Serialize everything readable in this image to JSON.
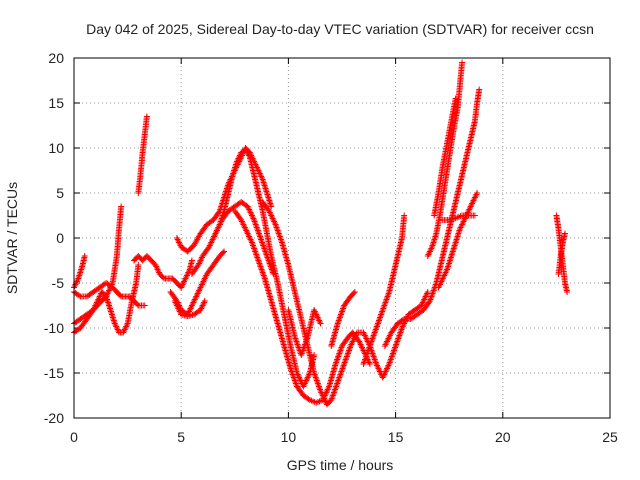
{
  "chart_data": {
    "type": "scatter",
    "title": "Day 042 of 2025, Sidereal Day-to-day VTEC variation (SDTVAR) for receiver ccsn",
    "xlabel": "GPS time / hours",
    "ylabel": "SDTVAR / TECUs",
    "xlim": [
      0,
      25
    ],
    "ylim": [
      -20,
      20
    ],
    "xticks": [
      "0",
      "5",
      "10",
      "15",
      "20",
      "25"
    ],
    "yticks": [
      "-20",
      "-15",
      "-10",
      "-5",
      "0",
      "5",
      "10",
      "15",
      "20"
    ],
    "grid": true,
    "marker": "+",
    "color": "#ff0000",
    "series": [
      {
        "points": [
          [
            0.0,
            -5.5
          ],
          [
            0.2,
            -4.5
          ],
          [
            0.4,
            -3.0
          ],
          [
            0.5,
            -2.0
          ]
        ]
      },
      {
        "points": [
          [
            0.0,
            -9.5
          ],
          [
            0.3,
            -9.0
          ],
          [
            0.6,
            -8.5
          ],
          [
            0.9,
            -8.0
          ],
          [
            1.2,
            -7.2
          ],
          [
            1.5,
            -6.5
          ],
          [
            1.8,
            -5.0
          ],
          [
            2.0,
            -2.0
          ],
          [
            2.1,
            1.0
          ],
          [
            2.2,
            3.5
          ]
        ]
      },
      {
        "points": [
          [
            0.0,
            -10.5
          ],
          [
            0.3,
            -10.0
          ],
          [
            0.6,
            -9.0
          ],
          [
            0.9,
            -8.0
          ],
          [
            1.1,
            -7.0
          ],
          [
            1.3,
            -6.0
          ],
          [
            1.5,
            -6.5
          ],
          [
            1.7,
            -8.0
          ],
          [
            1.9,
            -9.5
          ],
          [
            2.1,
            -10.5
          ],
          [
            2.3,
            -10.5
          ],
          [
            2.5,
            -9.5
          ],
          [
            2.7,
            -7.0
          ],
          [
            2.9,
            -5.0
          ],
          [
            3.0,
            -3.0
          ]
        ]
      },
      {
        "points": [
          [
            0.0,
            -6.0
          ],
          [
            0.3,
            -6.5
          ],
          [
            0.6,
            -6.5
          ],
          [
            0.9,
            -6.0
          ],
          [
            1.2,
            -5.5
          ],
          [
            1.5,
            -5.0
          ],
          [
            1.8,
            -5.5
          ],
          [
            2.0,
            -6.0
          ],
          [
            2.2,
            -6.5
          ],
          [
            2.4,
            -6.5
          ],
          [
            2.6,
            -6.5
          ],
          [
            2.8,
            -7.0
          ],
          [
            3.0,
            -7.5
          ],
          [
            3.3,
            -7.5
          ]
        ]
      },
      {
        "points": [
          [
            2.8,
            -2.5
          ],
          [
            3.0,
            -2.0
          ],
          [
            3.2,
            -2.5
          ],
          [
            3.4,
            -2.0
          ],
          [
            3.6,
            -2.5
          ],
          [
            3.8,
            -3.0
          ],
          [
            4.0,
            -4.0
          ],
          [
            4.2,
            -4.5
          ],
          [
            4.4,
            -4.5
          ],
          [
            4.6,
            -4.5
          ],
          [
            4.8,
            -5.0
          ],
          [
            5.0,
            -5.5
          ],
          [
            5.2,
            -4.5
          ],
          [
            5.4,
            -3.5
          ],
          [
            5.5,
            -2.5
          ]
        ]
      },
      {
        "points": [
          [
            3.0,
            5.0
          ],
          [
            3.1,
            7.0
          ],
          [
            3.2,
            9.5
          ],
          [
            3.3,
            11.5
          ],
          [
            3.4,
            13.5
          ]
        ]
      },
      {
        "points": [
          [
            4.5,
            -6.0
          ],
          [
            4.8,
            -7.0
          ],
          [
            5.0,
            -8.0
          ],
          [
            5.3,
            -8.5
          ],
          [
            5.6,
            -7.0
          ],
          [
            5.9,
            -5.5
          ],
          [
            6.2,
            -4.0
          ],
          [
            6.5,
            -3.0
          ],
          [
            6.8,
            -2.0
          ],
          [
            7.0,
            -1.5
          ]
        ]
      },
      {
        "points": [
          [
            4.7,
            -7.0
          ],
          [
            5.0,
            -8.5
          ],
          [
            5.3,
            -8.7
          ],
          [
            5.6,
            -8.5
          ],
          [
            5.9,
            -8.0
          ],
          [
            6.1,
            -7.0
          ]
        ]
      },
      {
        "points": [
          [
            4.8,
            0.0
          ],
          [
            5.0,
            -1.0
          ],
          [
            5.3,
            -1.5
          ],
          [
            5.6,
            -0.8
          ],
          [
            5.9,
            0.5
          ],
          [
            6.2,
            1.5
          ],
          [
            6.5,
            2.0
          ],
          [
            6.8,
            3.0
          ],
          [
            7.0,
            4.5
          ],
          [
            7.2,
            6.0
          ],
          [
            7.5,
            7.5
          ],
          [
            7.8,
            9.0
          ],
          [
            8.0,
            10.0
          ],
          [
            8.2,
            9.5
          ],
          [
            8.5,
            8.0
          ],
          [
            8.8,
            6.5
          ],
          [
            9.0,
            5.0
          ],
          [
            9.2,
            3.5
          ]
        ]
      },
      {
        "points": [
          [
            5.5,
            -4.0
          ],
          [
            5.8,
            -3.0
          ],
          [
            6.0,
            -2.0
          ],
          [
            6.3,
            -1.0
          ],
          [
            6.6,
            0.5
          ],
          [
            6.9,
            2.0
          ],
          [
            7.2,
            3.0
          ],
          [
            7.5,
            3.5
          ],
          [
            7.8,
            4.0
          ],
          [
            8.1,
            3.5
          ],
          [
            8.4,
            2.0
          ],
          [
            8.7,
            0.0
          ],
          [
            9.0,
            -2.0
          ],
          [
            9.3,
            -4.0
          ]
        ]
      },
      {
        "points": [
          [
            6.5,
            0.0
          ],
          [
            6.8,
            1.5
          ],
          [
            7.0,
            3.0
          ],
          [
            7.2,
            5.0
          ],
          [
            7.4,
            7.0
          ],
          [
            7.6,
            8.5
          ],
          [
            7.8,
            9.5
          ],
          [
            8.0,
            9.8
          ],
          [
            8.2,
            9.0
          ],
          [
            8.4,
            7.0
          ],
          [
            8.6,
            5.0
          ],
          [
            8.8,
            3.0
          ],
          [
            9.0,
            0.5
          ],
          [
            9.2,
            -2.0
          ],
          [
            9.5,
            -5.0
          ],
          [
            9.8,
            -8.5
          ],
          [
            10.1,
            -12.0
          ],
          [
            10.4,
            -15.0
          ],
          [
            10.7,
            -16.5
          ],
          [
            11.0,
            -15.0
          ],
          [
            11.2,
            -13.0
          ]
        ]
      },
      {
        "points": [
          [
            7.5,
            3.0
          ],
          [
            7.8,
            2.0
          ],
          [
            8.0,
            1.0
          ],
          [
            8.3,
            -0.5
          ],
          [
            8.6,
            -2.5
          ],
          [
            8.9,
            -4.5
          ],
          [
            9.2,
            -7.0
          ],
          [
            9.5,
            -9.5
          ],
          [
            9.8,
            -12.0
          ],
          [
            10.1,
            -14.5
          ],
          [
            10.4,
            -16.5
          ],
          [
            10.7,
            -17.5
          ],
          [
            11.0,
            -18.0
          ],
          [
            11.3,
            -18.3
          ],
          [
            11.6,
            -18.0
          ],
          [
            11.9,
            -16.5
          ],
          [
            12.2,
            -14.0
          ],
          [
            12.5,
            -12.0
          ],
          [
            12.8,
            -11.0
          ],
          [
            13.0,
            -10.5
          ],
          [
            13.3,
            -11.5
          ],
          [
            13.6,
            -13.0
          ],
          [
            13.8,
            -14.0
          ]
        ]
      },
      {
        "points": [
          [
            8.8,
            4.0
          ],
          [
            9.1,
            3.0
          ],
          [
            9.4,
            1.5
          ],
          [
            9.7,
            -0.5
          ],
          [
            10.0,
            -3.0
          ],
          [
            10.3,
            -6.0
          ],
          [
            10.6,
            -9.0
          ],
          [
            10.9,
            -12.0
          ],
          [
            11.2,
            -15.0
          ],
          [
            11.5,
            -17.0
          ],
          [
            11.8,
            -18.5
          ],
          [
            12.0,
            -18.0
          ],
          [
            12.3,
            -16.0
          ],
          [
            12.6,
            -14.0
          ],
          [
            12.9,
            -12.0
          ],
          [
            13.2,
            -10.5
          ],
          [
            13.5,
            -10.5
          ],
          [
            13.8,
            -12.0
          ],
          [
            14.1,
            -14.0
          ],
          [
            14.4,
            -15.5
          ],
          [
            14.7,
            -14.0
          ],
          [
            15.0,
            -12.0
          ],
          [
            15.3,
            -10.0
          ],
          [
            15.6,
            -8.5
          ],
          [
            15.9,
            -8.0
          ],
          [
            16.2,
            -7.5
          ],
          [
            16.5,
            -6.0
          ]
        ]
      },
      {
        "points": [
          [
            10.0,
            -8.0
          ],
          [
            10.3,
            -11.0
          ],
          [
            10.6,
            -13.0
          ],
          [
            10.9,
            -11.0
          ],
          [
            11.2,
            -8.0
          ],
          [
            11.5,
            -9.5
          ]
        ]
      },
      {
        "points": [
          [
            12.0,
            -12.0
          ],
          [
            12.3,
            -9.5
          ],
          [
            12.6,
            -7.5
          ],
          [
            12.9,
            -6.5
          ],
          [
            13.1,
            -6.0
          ]
        ]
      },
      {
        "points": [
          [
            13.5,
            -14.0
          ],
          [
            13.8,
            -12.0
          ],
          [
            14.1,
            -10.0
          ],
          [
            14.4,
            -8.0
          ],
          [
            14.7,
            -6.0
          ],
          [
            14.9,
            -4.0
          ],
          [
            15.1,
            -2.0
          ],
          [
            15.3,
            0.0
          ],
          [
            15.4,
            2.5
          ]
        ]
      },
      {
        "points": [
          [
            14.5,
            -12.0
          ],
          [
            14.8,
            -10.5
          ],
          [
            15.1,
            -9.5
          ],
          [
            15.4,
            -9.0
          ],
          [
            15.7,
            -9.0
          ],
          [
            16.0,
            -8.5
          ],
          [
            16.3,
            -8.0
          ],
          [
            16.6,
            -7.0
          ],
          [
            16.9,
            -5.0
          ],
          [
            17.1,
            -3.0
          ],
          [
            17.3,
            -1.0
          ],
          [
            17.5,
            1.0
          ],
          [
            17.7,
            3.0
          ],
          [
            17.9,
            5.0
          ],
          [
            18.1,
            7.0
          ],
          [
            18.3,
            9.0
          ],
          [
            18.5,
            11.0
          ],
          [
            18.7,
            13.0
          ],
          [
            18.8,
            15.0
          ],
          [
            18.9,
            16.5
          ]
        ]
      },
      {
        "points": [
          [
            16.5,
            -2.0
          ],
          [
            16.7,
            -1.0
          ],
          [
            16.9,
            0.5
          ],
          [
            17.1,
            3.0
          ],
          [
            17.3,
            6.0
          ],
          [
            17.5,
            9.0
          ],
          [
            17.7,
            12.0
          ],
          [
            17.9,
            14.5
          ],
          [
            18.0,
            17.0
          ],
          [
            18.1,
            19.5
          ]
        ]
      },
      {
        "points": [
          [
            16.8,
            2.5
          ],
          [
            17.0,
            5.0
          ],
          [
            17.2,
            8.0
          ],
          [
            17.4,
            10.5
          ],
          [
            17.6,
            13.0
          ],
          [
            17.8,
            15.5
          ]
        ]
      },
      {
        "points": [
          [
            17.0,
            -5.5
          ],
          [
            17.2,
            -4.5
          ],
          [
            17.4,
            -3.5
          ],
          [
            17.6,
            -2.0
          ],
          [
            17.8,
            -0.5
          ],
          [
            18.0,
            1.0
          ],
          [
            18.2,
            2.0
          ],
          [
            18.4,
            3.0
          ],
          [
            18.6,
            4.0
          ],
          [
            18.8,
            5.0
          ]
        ]
      },
      {
        "points": [
          [
            17.2,
            2.0
          ],
          [
            17.5,
            2.0
          ],
          [
            17.8,
            2.2
          ],
          [
            18.1,
            2.5
          ],
          [
            18.4,
            2.5
          ],
          [
            18.7,
            2.5
          ]
        ]
      },
      {
        "points": [
          [
            22.5,
            2.5
          ],
          [
            22.6,
            1.0
          ],
          [
            22.7,
            -1.0
          ],
          [
            22.8,
            -3.0
          ],
          [
            22.9,
            -5.0
          ],
          [
            23.0,
            -6.0
          ]
        ]
      },
      {
        "points": [
          [
            22.6,
            -4.0
          ],
          [
            22.7,
            -2.0
          ],
          [
            22.8,
            -0.5
          ],
          [
            22.9,
            0.5
          ]
        ]
      }
    ]
  }
}
